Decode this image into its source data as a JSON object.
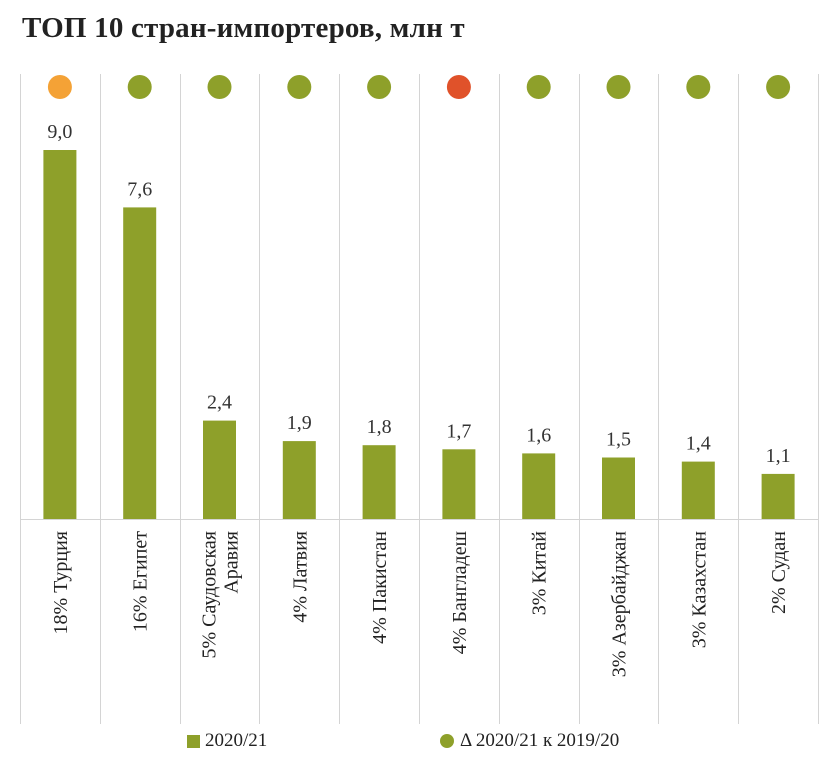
{
  "title": "ТОП 10 стран-импортеров, млн т",
  "colors": {
    "bar": "#8ea02a",
    "dot_green": "#8ea02a",
    "dot_orange": "#f4a236",
    "dot_red": "#e0522a",
    "grid": "#d4d4d4"
  },
  "chart_data": {
    "type": "bar",
    "categories": [
      "18% Турция",
      "16% Египет",
      "5% Саудовская Аравия",
      "4% Латвия",
      "4% Пакистан",
      "4% Бангладеш",
      "3% Китай",
      "3% Азербайджан",
      "3% Казахстан",
      "2% Судан"
    ],
    "category_lines": [
      [
        "18% Турция"
      ],
      [
        "16% Египет"
      ],
      [
        "5% Саудовская",
        "Аравия"
      ],
      [
        "4% Латвия"
      ],
      [
        "4% Пакистан"
      ],
      [
        "4% Бангладеш"
      ],
      [
        "3% Китай"
      ],
      [
        "3% Азербайджан"
      ],
      [
        "3% Казахстан"
      ],
      [
        "2% Судан"
      ]
    ],
    "series": [
      {
        "name": "2020/21",
        "values": [
          9.0,
          7.6,
          2.4,
          1.9,
          1.8,
          1.7,
          1.6,
          1.5,
          1.4,
          1.1
        ],
        "labels": [
          "9,0",
          "7,6",
          "2,4",
          "1,9",
          "1,8",
          "1,7",
          "1,6",
          "1,5",
          "1,4",
          "1,1"
        ]
      }
    ],
    "indicator": {
      "name": "Δ 2020/21 к 2019/20",
      "colors": [
        "orange",
        "green",
        "green",
        "green",
        "green",
        "red",
        "green",
        "green",
        "green",
        "green"
      ]
    },
    "ylim": [
      0,
      9.0
    ],
    "grid": "vertical category separators",
    "legend_position": "bottom"
  },
  "legend": {
    "bars_label": "2020/21",
    "dots_label": "Δ 2020/21 к 2019/20"
  }
}
